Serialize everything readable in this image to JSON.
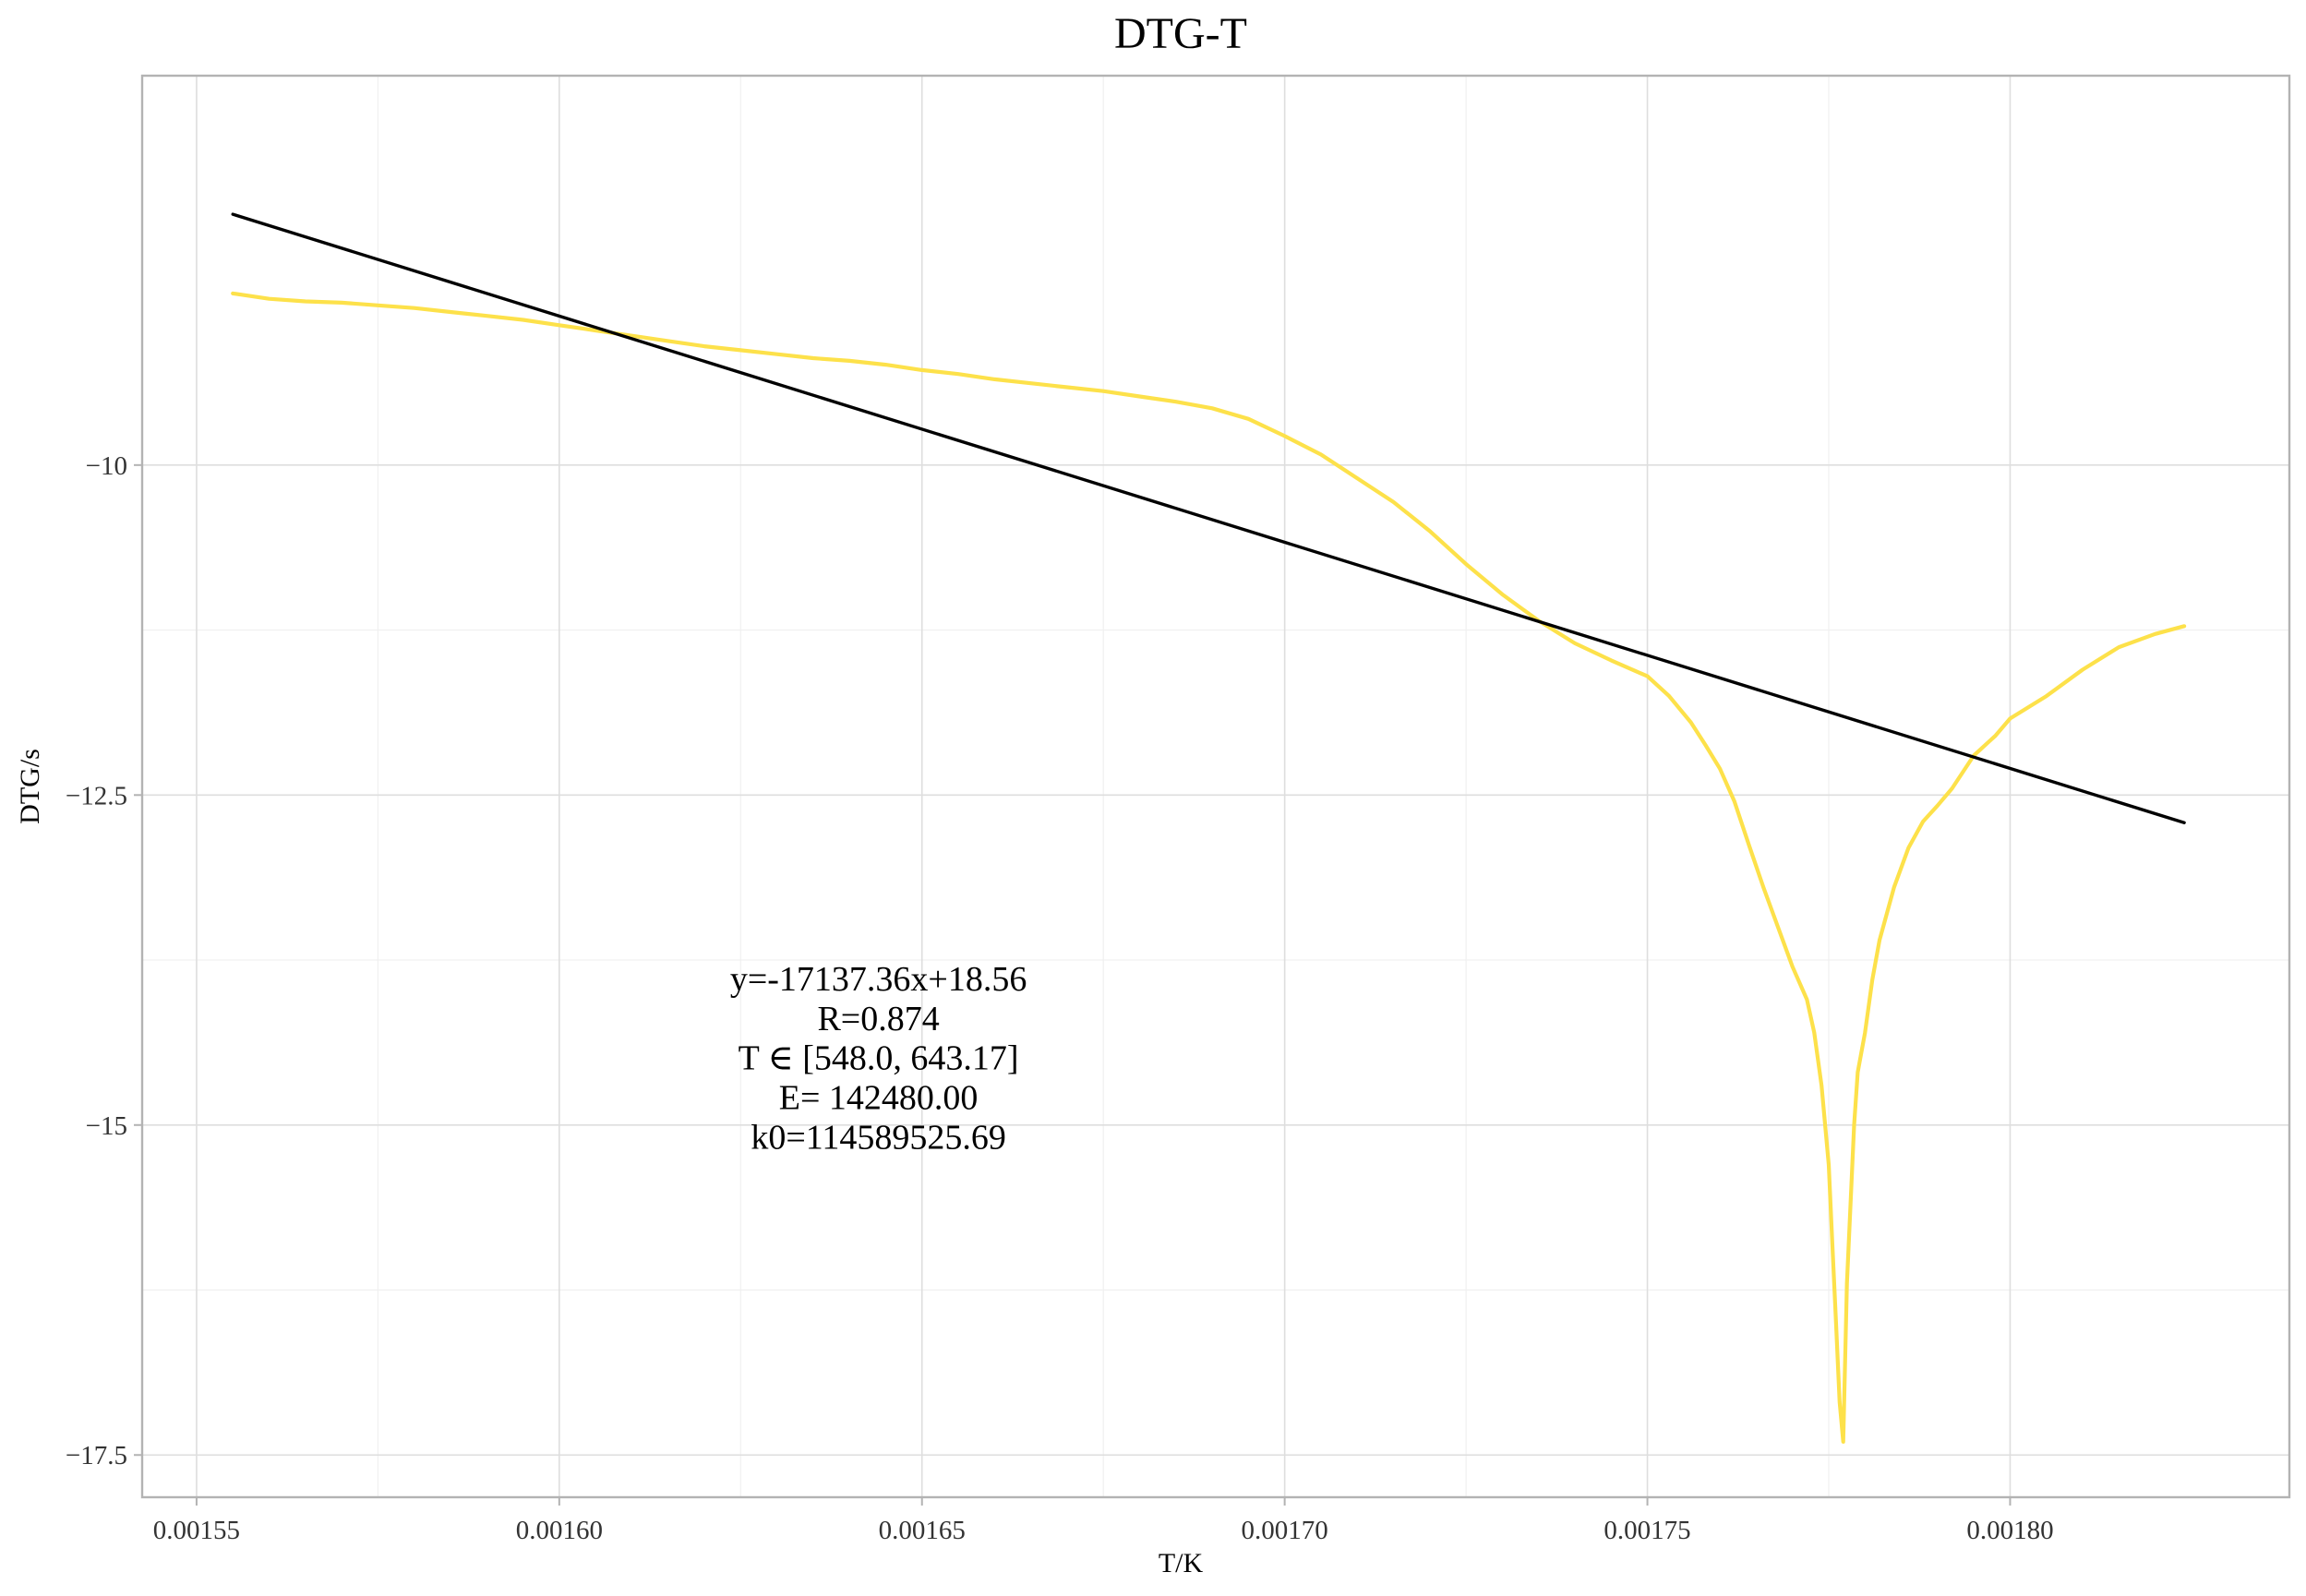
{
  "chart_data": {
    "type": "line",
    "title": "DTG-T",
    "xlabel": "T/K",
    "ylabel": "DTG/s",
    "xlim": [
      0.0015425,
      0.0018385
    ],
    "ylim": [
      -17.82,
      -7.05
    ],
    "x_ticks": [
      0.00155,
      0.0016,
      0.00165,
      0.0017,
      0.00175,
      0.0018
    ],
    "x_tick_labels": [
      "0.00155",
      "0.00160",
      "0.00165",
      "0.00170",
      "0.00175",
      "0.00180"
    ],
    "y_ticks": [
      -10,
      -12.5,
      -15,
      -17.5
    ],
    "y_tick_labels": [
      "−10",
      "−12.5",
      "−15",
      "−17.5"
    ],
    "grid": true,
    "legend": "none",
    "series": [
      {
        "kind": "data",
        "color": "#FDE14A",
        "x": [
          0.001555,
          0.00156,
          0.001565,
          0.00157,
          0.001575,
          0.00158,
          0.001585,
          0.00159,
          0.001595,
          0.0016,
          0.001605,
          0.00161,
          0.001615,
          0.00162,
          0.001625,
          0.00163,
          0.001635,
          0.00164,
          0.001645,
          0.00165,
          0.001655,
          0.00166,
          0.001665,
          0.00167,
          0.001675,
          0.00168,
          0.001685,
          0.00169,
          0.001695,
          0.0017,
          0.001705,
          0.00171,
          0.001715,
          0.00172,
          0.001725,
          0.00173,
          0.001735,
          0.00174,
          0.001745,
          0.00175,
          0.001753,
          0.001756,
          0.001758,
          0.00176,
          0.001762,
          0.001764,
          0.001766,
          0.001768,
          0.00177,
          0.001772,
          0.001773,
          0.001774,
          0.001775,
          0.0017755,
          0.001776,
          0.0017765,
          0.001777,
          0.0017775,
          0.001778,
          0.0017785,
          0.001779,
          0.00178,
          0.001781,
          0.001782,
          0.001784,
          0.001786,
          0.001788,
          0.00179,
          0.001792,
          0.001795,
          0.001798,
          0.0018,
          0.001805,
          0.00181,
          0.001815,
          0.00182,
          0.001824
        ],
        "y": [
          -8.7,
          -8.74,
          -8.76,
          -8.77,
          -8.79,
          -8.81,
          -8.84,
          -8.87,
          -8.9,
          -8.94,
          -8.98,
          -9.02,
          -9.06,
          -9.1,
          -9.13,
          -9.16,
          -9.19,
          -9.21,
          -9.24,
          -9.28,
          -9.31,
          -9.35,
          -9.38,
          -9.41,
          -9.44,
          -9.48,
          -9.52,
          -9.57,
          -9.65,
          -9.78,
          -9.92,
          -10.1,
          -10.28,
          -10.5,
          -10.75,
          -10.98,
          -11.18,
          -11.35,
          -11.48,
          -11.6,
          -11.75,
          -11.95,
          -12.12,
          -12.3,
          -12.55,
          -12.88,
          -13.2,
          -13.5,
          -13.8,
          -14.05,
          -14.3,
          -14.7,
          -15.3,
          -15.9,
          -16.5,
          -17.1,
          -17.4,
          -16.2,
          -15.6,
          -15.0,
          -14.6,
          -14.3,
          -13.9,
          -13.6,
          -13.2,
          -12.9,
          -12.7,
          -12.58,
          -12.45,
          -12.2,
          -12.05,
          -11.92,
          -11.75,
          -11.55,
          -11.38,
          -11.28,
          -11.22
        ]
      },
      {
        "kind": "fit",
        "color": "#000000",
        "x": [
          0.001555,
          0.001824
        ],
        "y": [
          -8.1,
          -12.71
        ]
      }
    ],
    "annotation": {
      "lines": [
        "y=-17137.36x+18.56",
        "R=0.874",
        "T ∈ [548.0, 643.17]",
        "E= 142480.00",
        "k0=114589525.69"
      ],
      "x": 0.001644,
      "y": [
        -13.98,
        -14.28,
        -14.58,
        -14.88,
        -15.18
      ]
    }
  }
}
